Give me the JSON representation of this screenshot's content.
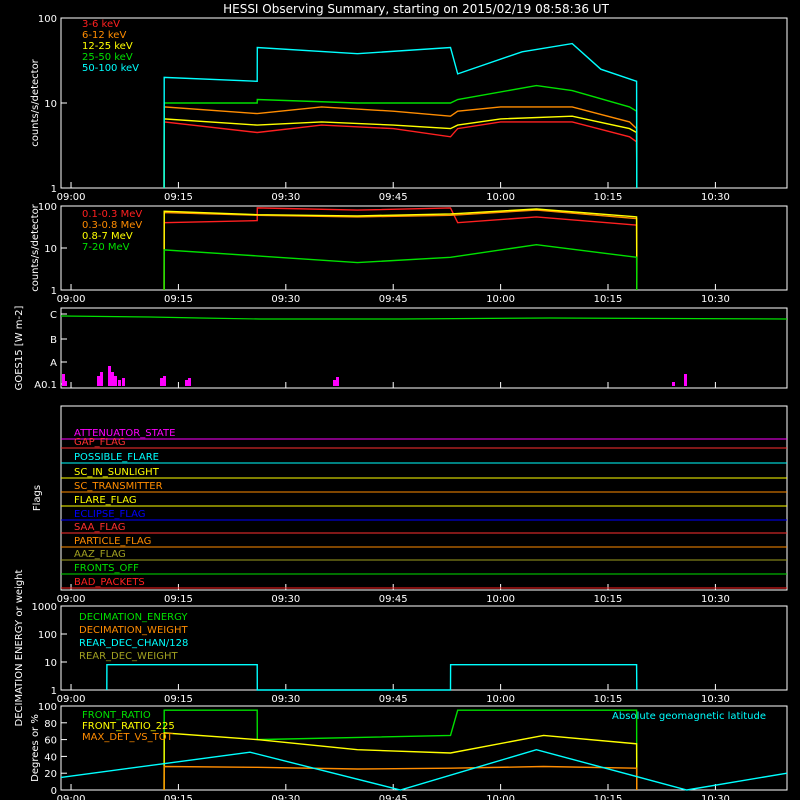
{
  "title": "HESSI Observing Summary, starting on 2015/02/19 08:58:36 UT",
  "time_ticks": [
    "09:00",
    "09:15",
    "09:30",
    "09:45",
    "10:00",
    "10:15",
    "10:30"
  ],
  "chart_data": [
    {
      "type": "line",
      "panel": "rate_low",
      "ylabel": "counts/s/detector",
      "yscale": "log",
      "ylim": [
        1,
        100
      ],
      "yticks": [
        "1",
        "10",
        "100"
      ],
      "xlim": [
        "08:58:36",
        "10:40:00"
      ],
      "legend_position": "top-left",
      "series": [
        {
          "name": "3-6 keV",
          "color": "#ff2020",
          "x": [
            "09:13:00",
            "09:13:01",
            "09:26:00",
            "09:35:00",
            "09:45:00",
            "09:53:00",
            "09:54:00",
            "10:00:00",
            "10:10:00",
            "10:18:00",
            "10:19:00",
            "10:19:01"
          ],
          "values": [
            1,
            6.0,
            4.5,
            5.5,
            5.0,
            4.0,
            5.0,
            6.0,
            6.0,
            4.0,
            3.5,
            1
          ]
        },
        {
          "name": "6-12 keV",
          "color": "#ff8c00",
          "x": [
            "09:13:00",
            "09:13:01",
            "09:26:00",
            "09:35:00",
            "09:45:00",
            "09:53:00",
            "09:54:00",
            "10:00:00",
            "10:10:00",
            "10:18:00",
            "10:19:00",
            "10:19:01"
          ],
          "values": [
            1,
            9.0,
            7.5,
            9.0,
            8.0,
            7.0,
            8.0,
            9.0,
            9.0,
            6.0,
            5.0,
            1
          ]
        },
        {
          "name": "12-25 keV",
          "color": "#ffff00",
          "x": [
            "09:13:00",
            "09:13:01",
            "09:26:00",
            "09:35:00",
            "09:45:00",
            "09:53:00",
            "09:54:00",
            "10:00:00",
            "10:10:00",
            "10:18:00",
            "10:19:00",
            "10:19:01"
          ],
          "values": [
            1,
            6.5,
            5.5,
            6.0,
            5.5,
            5.0,
            5.5,
            6.5,
            7.0,
            5.0,
            4.5,
            1
          ]
        },
        {
          "name": "25-50 keV",
          "color": "#00e000",
          "x": [
            "09:13:00",
            "09:13:01",
            "09:26:00",
            "09:26:01",
            "09:40:00",
            "09:53:00",
            "09:54:00",
            "10:05:00",
            "10:10:00",
            "10:18:00",
            "10:19:00",
            "10:19:01"
          ],
          "values": [
            1,
            10,
            10,
            11,
            10,
            10,
            11,
            16,
            14,
            9,
            8,
            1
          ]
        },
        {
          "name": "50-100 keV",
          "color": "#00ffff",
          "x": [
            "09:13:00",
            "09:13:01",
            "09:26:00",
            "09:26:01",
            "09:40:00",
            "09:53:00",
            "09:54:00",
            "10:03:00",
            "10:10:00",
            "10:14:00",
            "10:19:00",
            "10:19:01"
          ],
          "values": [
            1,
            20,
            18,
            45,
            38,
            45,
            22,
            40,
            50,
            25,
            18,
            1
          ]
        }
      ]
    },
    {
      "type": "line",
      "panel": "rate_high",
      "ylabel": "counts/s/detector",
      "yscale": "log",
      "ylim": [
        1,
        100
      ],
      "yticks": [
        "1",
        "10",
        "100"
      ],
      "xlim": [
        "08:58:36",
        "10:40:00"
      ],
      "legend_position": "top-left",
      "series": [
        {
          "name": "0.1-0.3 MeV",
          "color": "#ff2020",
          "x": [
            "09:13:00",
            "09:13:01",
            "09:26:00",
            "09:26:01",
            "09:40:00",
            "09:53:00",
            "09:54:00",
            "10:05:00",
            "10:19:00",
            "10:19:01"
          ],
          "values": [
            1,
            40,
            45,
            90,
            80,
            90,
            40,
            55,
            35,
            1
          ]
        },
        {
          "name": "0.3-0.8 MeV",
          "color": "#ff8c00",
          "x": [
            "09:13:00",
            "09:13:01",
            "09:26:00",
            "09:40:00",
            "09:53:00",
            "10:05:00",
            "10:19:00",
            "10:19:01"
          ],
          "values": [
            1,
            70,
            60,
            55,
            60,
            80,
            50,
            1
          ]
        },
        {
          "name": "0.8-7 MeV",
          "color": "#ffff00",
          "x": [
            "09:13:00",
            "09:13:01",
            "09:26:00",
            "09:40:00",
            "09:53:00",
            "10:05:00",
            "10:19:00",
            "10:19:01"
          ],
          "values": [
            1,
            75,
            62,
            58,
            65,
            85,
            55,
            1
          ]
        },
        {
          "name": "7-20 MeV",
          "color": "#00e000",
          "x": [
            "09:13:00",
            "09:13:01",
            "09:26:00",
            "09:40:00",
            "09:53:00",
            "10:05:00",
            "10:19:00",
            "10:19:01"
          ],
          "values": [
            1,
            9,
            6.5,
            4.5,
            6,
            12,
            6,
            1
          ]
        }
      ]
    },
    {
      "type": "line",
      "panel": "goes",
      "ylabel": "GOES15 [W m-2]",
      "yticks": [
        "A0.1",
        "A",
        "B",
        "C"
      ],
      "series": [
        {
          "name": "GOES",
          "color": "#00e000"
        },
        {
          "name": "spikes",
          "color": "#ff00ff"
        }
      ]
    },
    {
      "type": "table",
      "panel": "flags",
      "ylabel": "Flags",
      "flags": [
        {
          "name": "ATTENUATOR_STATE",
          "color": "#ff00ff"
        },
        {
          "name": "GAP_FLAG",
          "color": "#ff3030"
        },
        {
          "name": "POSSIBLE_FLARE",
          "color": "#00ffff"
        },
        {
          "name": "SC_IN_SUNLIGHT",
          "color": "#ffff00"
        },
        {
          "name": "SC_TRANSMITTER",
          "color": "#ff8c00"
        },
        {
          "name": "FLARE_FLAG",
          "color": "#ffff00"
        },
        {
          "name": "ECLIPSE_FLAG",
          "color": "#0000ff"
        },
        {
          "name": "SAA_FLAG",
          "color": "#ff3030"
        },
        {
          "name": "PARTICLE_FLAG",
          "color": "#ff8c00"
        },
        {
          "name": "AAZ_FLAG",
          "color": "#a0a020"
        },
        {
          "name": "FRONTS_OFF",
          "color": "#00e000"
        },
        {
          "name": "BAD_PACKETS",
          "color": "#ff2020"
        }
      ]
    },
    {
      "type": "line",
      "panel": "decimation",
      "ylabel": "DECIMATION ENERGY or weight",
      "yscale": "log",
      "ylim": [
        1,
        1000
      ],
      "yticks": [
        "1",
        "10",
        "100",
        "1000"
      ],
      "series": [
        {
          "name": "DECIMATION_ENERGY",
          "color": "#00e000"
        },
        {
          "name": "DECIMATION_WEIGHT",
          "color": "#ff8c00"
        },
        {
          "name": "REAR_DEC_CHAN/128",
          "color": "#00ffff",
          "x": [
            "09:05:00",
            "09:05:01",
            "09:26:00",
            "09:26:01",
            "09:53:00",
            "09:53:01",
            "10:19:00",
            "10:19:01"
          ],
          "values": [
            1,
            8,
            8,
            1,
            1,
            8,
            8,
            1
          ]
        },
        {
          "name": "REAR_DEC_WEIGHT",
          "color": "#a0a020"
        }
      ]
    },
    {
      "type": "line",
      "panel": "ratio",
      "ylabel": "Degrees or %",
      "ylim": [
        0,
        100
      ],
      "yticks": [
        "0",
        "20",
        "40",
        "60",
        "80",
        "100"
      ],
      "annotation": "Absolute geomagnetic latitude",
      "series": [
        {
          "name": "FRONT_RATIO",
          "color": "#00e000",
          "x": [
            "09:13:00",
            "09:13:01",
            "09:26:00",
            "09:26:01",
            "09:53:00",
            "09:54:00",
            "10:19:00",
            "10:19:01"
          ],
          "values": [
            0,
            95,
            95,
            60,
            65,
            95,
            95,
            0
          ]
        },
        {
          "name": "FRONT_RATIO_225",
          "color": "#ffff00",
          "x": [
            "09:13:00",
            "09:13:01",
            "09:26:00",
            "09:40:00",
            "09:53:00",
            "10:06:00",
            "10:19:00",
            "10:19:01"
          ],
          "values": [
            0,
            68,
            60,
            48,
            44,
            65,
            55,
            0
          ]
        },
        {
          "name": "MAX_DET_VS_TOT",
          "color": "#ff8c00",
          "x": [
            "09:13:00",
            "09:13:01",
            "09:26:00",
            "09:40:00",
            "09:53:00",
            "10:06:00",
            "10:19:00",
            "10:19:01"
          ],
          "values": [
            0,
            28,
            27,
            25,
            26,
            28,
            26,
            0
          ]
        },
        {
          "name": "Absolute geomagnetic latitude",
          "color": "#00ffff",
          "x": [
            "08:58:36",
            "09:25:00",
            "09:46:00",
            "10:05:00",
            "10:26:00",
            "10:40:00"
          ],
          "values": [
            15,
            45,
            0,
            48,
            0,
            20
          ]
        }
      ]
    }
  ]
}
